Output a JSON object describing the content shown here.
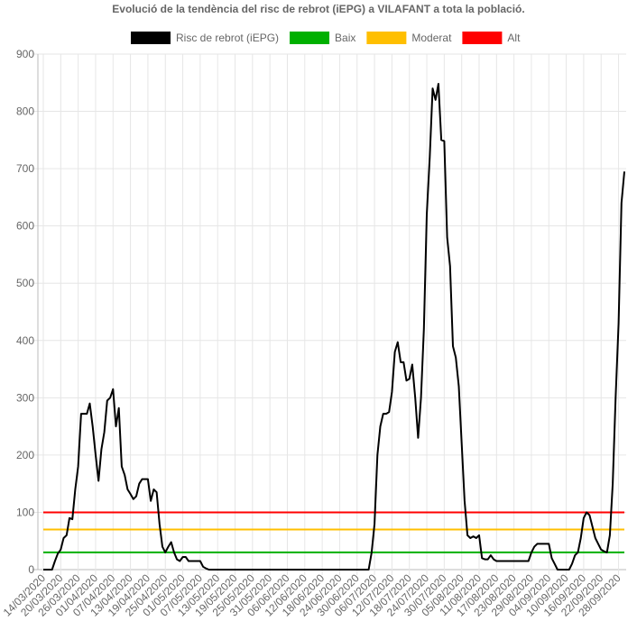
{
  "chart_data": {
    "type": "line",
    "title": "Evolució de la tendència del risc de rebrot (iEPG) a VILAFANT a tota la població.",
    "categories": [
      "14/03/2020",
      null,
      null,
      null,
      null,
      null,
      "20/03/2020",
      null,
      null,
      null,
      null,
      null,
      "26/03/2020",
      null,
      null,
      null,
      null,
      null,
      "01/04/2020",
      null,
      null,
      null,
      null,
      null,
      "07/04/2020",
      null,
      null,
      null,
      null,
      null,
      "13/04/2020",
      null,
      null,
      null,
      null,
      null,
      "19/04/2020",
      null,
      null,
      null,
      null,
      null,
      "25/04/2020",
      null,
      null,
      null,
      null,
      null,
      "01/05/2020",
      null,
      null,
      null,
      null,
      null,
      "07/05/2020",
      null,
      null,
      null,
      null,
      null,
      "13/05/2020",
      null,
      null,
      null,
      null,
      null,
      "19/05/2020",
      null,
      null,
      null,
      null,
      null,
      "25/05/2020",
      null,
      null,
      null,
      null,
      null,
      "31/05/2020",
      null,
      null,
      null,
      null,
      null,
      "06/06/2020",
      null,
      null,
      null,
      null,
      null,
      "12/06/2020",
      null,
      null,
      null,
      null,
      null,
      "18/06/2020",
      null,
      null,
      null,
      null,
      null,
      "24/06/2020",
      null,
      null,
      null,
      null,
      null,
      "30/06/2020",
      null,
      null,
      null,
      null,
      null,
      "06/07/2020",
      null,
      null,
      null,
      null,
      null,
      "12/07/2020",
      null,
      null,
      null,
      null,
      null,
      "18/07/2020",
      null,
      null,
      null,
      null,
      null,
      "24/07/2020",
      null,
      null,
      null,
      null,
      null,
      "30/07/2020",
      null,
      null,
      null,
      null,
      null,
      "05/08/2020",
      null,
      null,
      null,
      null,
      null,
      "11/08/2020",
      null,
      null,
      null,
      null,
      null,
      "17/08/2020",
      null,
      null,
      null,
      null,
      null,
      "23/08/2020",
      null,
      null,
      null,
      null,
      null,
      "29/08/2020",
      null,
      null,
      null,
      null,
      null,
      "04/09/2020",
      null,
      null,
      null,
      null,
      null,
      "10/09/2020",
      null,
      null,
      null,
      null,
      null,
      "16/09/2020",
      null,
      null,
      null,
      null,
      null,
      "22/09/2020",
      null,
      null,
      null,
      null,
      null,
      "28/09/2020",
      null,
      null
    ],
    "series": [
      {
        "name": "Risc de rebrot (iEPG)",
        "color": "#000000",
        "values": [
          0,
          0,
          0,
          0,
          15,
          28,
          35,
          55,
          60,
          90,
          88,
          140,
          180,
          272,
          272,
          272,
          290,
          250,
          200,
          155,
          210,
          240,
          295,
          300,
          315,
          250,
          282,
          180,
          165,
          140,
          132,
          123,
          128,
          150,
          158,
          158,
          158,
          120,
          140,
          135,
          80,
          40,
          30,
          40,
          48,
          30,
          18,
          15,
          22,
          22,
          15,
          15,
          15,
          15,
          15,
          5,
          2,
          0,
          0,
          0,
          0,
          0,
          0,
          0,
          0,
          0,
          0,
          0,
          0,
          0,
          0,
          0,
          0,
          0,
          0,
          0,
          0,
          0,
          0,
          0,
          0,
          0,
          0,
          0,
          0,
          0,
          0,
          0,
          0,
          0,
          0,
          0,
          0,
          0,
          0,
          0,
          0,
          0,
          0,
          0,
          0,
          0,
          0,
          0,
          0,
          0,
          0,
          0,
          0,
          0,
          0,
          0,
          0,
          30,
          80,
          200,
          250,
          272,
          272,
          275,
          310,
          380,
          397,
          362,
          362,
          330,
          333,
          358,
          300,
          230,
          300,
          420,
          620,
          720,
          840,
          820,
          848,
          750,
          748,
          580,
          530,
          390,
          370,
          320,
          220,
          120,
          60,
          55,
          58,
          55,
          60,
          20,
          18,
          18,
          25,
          18,
          15,
          15,
          15,
          15,
          15,
          15,
          15,
          15,
          15,
          15,
          15,
          15,
          30,
          40,
          45,
          45,
          45,
          45,
          45,
          20,
          10,
          0,
          0,
          0,
          0,
          0,
          10,
          25,
          30,
          55,
          90,
          100,
          95,
          75,
          55,
          45,
          35,
          32,
          30,
          60,
          150,
          300,
          430,
          640,
          695
        ]
      },
      {
        "name": "Baix",
        "color": "#00b000",
        "value": 30
      },
      {
        "name": "Moderat",
        "color": "#ffbf00",
        "value": 70
      },
      {
        "name": "Alt",
        "color": "#ff0000",
        "value": 100
      }
    ],
    "ylim": [
      0,
      900
    ],
    "yticks": [
      0,
      100,
      200,
      300,
      400,
      500,
      600,
      700,
      800,
      900
    ],
    "grid": true
  }
}
